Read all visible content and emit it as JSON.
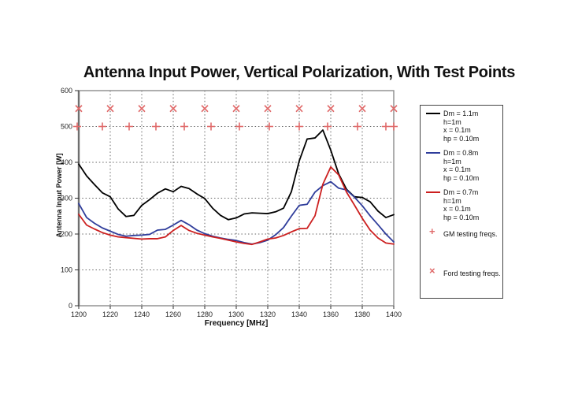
{
  "title": "Antenna Input Power, Vertical Polarization, With Test Points",
  "colors": {
    "black_series": "#000000",
    "blue_series": "#2f3d9b",
    "red_series": "#cc1f1f",
    "marker": "#e06a6a"
  },
  "legend": {
    "series": [
      {
        "color": "#000000",
        "lines": [
          "Dm = 1.1m",
          "h=1m",
          "x = 0.1m",
          "hp = 0.10m"
        ]
      },
      {
        "color": "#2f3d9b",
        "lines": [
          "Dm = 0.8m",
          "h=1m",
          "x = 0.1m",
          "hp = 0.10m"
        ]
      },
      {
        "color": "#cc1f1f",
        "lines": [
          "Dm = 0.7m",
          "h=1m",
          "x = 0.1m",
          "hp = 0.10m"
        ]
      }
    ],
    "markers": [
      {
        "glyph": "+",
        "label": "GM testing freqs."
      },
      {
        "glyph": "×",
        "label": "Ford testing freqs."
      }
    ]
  },
  "chart_data": {
    "type": "line",
    "title": "Antenna Input Power, Vertical Polarization, With Test Points",
    "xlabel": "Frequency [MHz]",
    "ylabel": "Antenna Input Power [W]",
    "xlim": [
      1200,
      1400
    ],
    "ylim": [
      0,
      600
    ],
    "x_ticks": [
      1200,
      1220,
      1240,
      1260,
      1280,
      1300,
      1320,
      1340,
      1360,
      1380,
      1400
    ],
    "y_ticks": [
      0,
      100,
      200,
      300,
      400,
      500,
      600
    ],
    "grid": "dotted",
    "legend_position": "right",
    "frequencies": [
      1200,
      1205,
      1210,
      1215,
      1220,
      1225,
      1230,
      1235,
      1240,
      1245,
      1250,
      1255,
      1260,
      1265,
      1270,
      1275,
      1280,
      1285,
      1290,
      1295,
      1300,
      1305,
      1310,
      1315,
      1320,
      1325,
      1330,
      1335,
      1340,
      1345,
      1350,
      1355,
      1360,
      1365,
      1370,
      1375,
      1380,
      1385,
      1390,
      1395,
      1400
    ],
    "series": [
      {
        "name": "Dm = 1.1m, h=1m, x = 0.1m, hp = 0.10m",
        "color": "#000000",
        "values": [
          395,
          362,
          338,
          315,
          304,
          270,
          249,
          252,
          280,
          296,
          314,
          326,
          318,
          333,
          327,
          312,
          299,
          272,
          252,
          240,
          245,
          256,
          259,
          258,
          257,
          262,
          272,
          318,
          404,
          465,
          468,
          490,
          434,
          368,
          325,
          304,
          302,
          290,
          264,
          246,
          254
        ]
      },
      {
        "name": "Dm = 0.8m, h=1m, x = 0.1m, hp = 0.10m",
        "color": "#2f3d9b",
        "values": [
          285,
          246,
          230,
          217,
          208,
          199,
          194,
          196,
          197,
          199,
          211,
          213,
          225,
          238,
          226,
          211,
          201,
          194,
          189,
          185,
          182,
          176,
          172,
          176,
          183,
          198,
          218,
          250,
          280,
          283,
          317,
          335,
          346,
          328,
          323,
          303,
          279,
          251,
          226,
          200,
          178
        ]
      },
      {
        "name": "Dm = 0.7m, h=1m, x = 0.1m, hp = 0.10m",
        "color": "#cc1f1f",
        "values": [
          255,
          225,
          214,
          204,
          197,
          192,
          190,
          188,
          186,
          187,
          187,
          192,
          210,
          224,
          210,
          202,
          197,
          192,
          188,
          183,
          178,
          174,
          171,
          178,
          186,
          189,
          196,
          206,
          215,
          216,
          251,
          339,
          387,
          365,
          317,
          281,
          244,
          211,
          189,
          175,
          172
        ]
      }
    ],
    "point_markers": [
      {
        "name": "GM testing freqs.",
        "shape": "plus",
        "color": "#e06a6a",
        "y": 500,
        "x": [
          1199,
          1215,
          1232,
          1249,
          1267,
          1284,
          1302,
          1321,
          1340,
          1358,
          1377,
          1395,
          1400
        ]
      },
      {
        "name": "Ford testing freqs.",
        "shape": "x",
        "color": "#e06a6a",
        "y": 550,
        "x": [
          1200,
          1220,
          1240,
          1260,
          1280,
          1300,
          1320,
          1340,
          1360,
          1380,
          1400
        ]
      }
    ]
  }
}
